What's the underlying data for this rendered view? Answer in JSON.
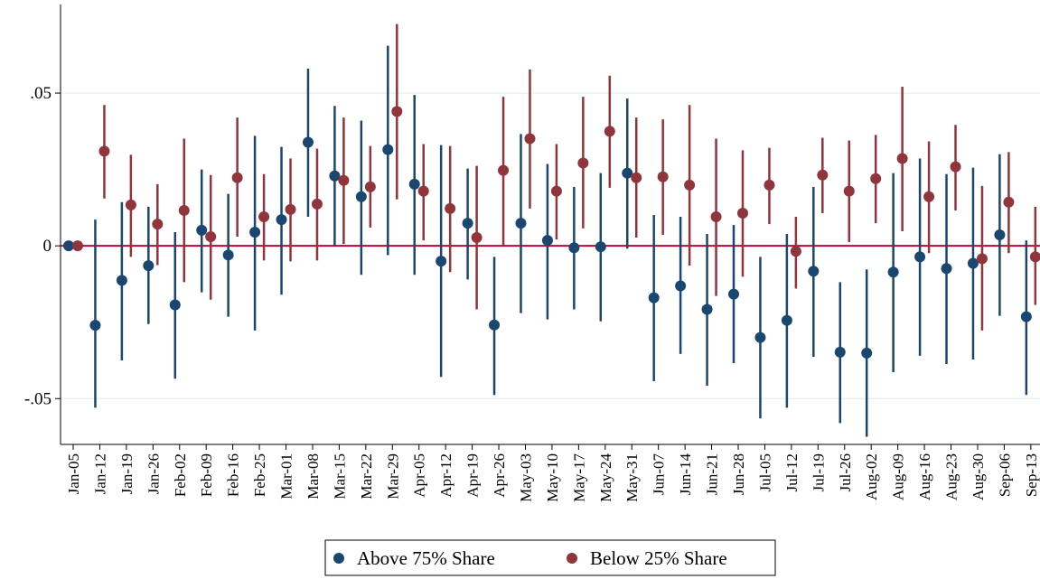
{
  "chart_data": {
    "type": "errorbar",
    "categories": [
      "Jan-05",
      "Jan-12",
      "Jan-19",
      "Jan-26",
      "Feb-02",
      "Feb-09",
      "Feb-16",
      "Feb-25",
      "Mar-01",
      "Mar-08",
      "Mar-15",
      "Mar-22",
      "Mar-29",
      "Apr-05",
      "Apr-12",
      "Apr-19",
      "Apr-26",
      "May-03",
      "May-10",
      "May-17",
      "May-24",
      "May-31",
      "Jun-07",
      "Jun-14",
      "Jun-21",
      "Jun-28",
      "Jul-05",
      "Jul-12",
      "Jul-19",
      "Jul-26",
      "Aug-02",
      "Aug-09",
      "Aug-16",
      "Aug-23",
      "Aug-30",
      "Sep-06",
      "Sep-13"
    ],
    "series": [
      {
        "name": "Above 75% Share",
        "color": "#1a476f",
        "values": [
          0,
          -0.026,
          -0.0113,
          -0.0065,
          -0.0193,
          0.0051,
          -0.003,
          0.0045,
          0.0086,
          0.0339,
          0.0229,
          0.0161,
          0.0315,
          0.0202,
          -0.005,
          0.0074,
          -0.0259,
          0.0074,
          0.0018,
          -0.0006,
          -0.0003,
          0.0238,
          -0.017,
          -0.0131,
          -0.0208,
          -0.0158,
          -0.03,
          -0.0244,
          -0.0083,
          -0.0348,
          -0.0351,
          -0.0086,
          -0.0036,
          -0.0074,
          -0.0057,
          0.0036,
          -0.0232
        ],
        "lower": [
          0,
          -0.053,
          -0.0375,
          -0.0256,
          -0.0435,
          -0.0152,
          -0.0232,
          -0.0277,
          -0.016,
          0.0095,
          0,
          -0.0095,
          -0.003,
          -0.0095,
          -0.0429,
          -0.011,
          -0.0488,
          -0.022,
          -0.0241,
          -0.0208,
          -0.0247,
          -0.0009,
          -0.0443,
          -0.0354,
          -0.0458,
          -0.0384,
          -0.0565,
          -0.053,
          -0.0363,
          -0.058,
          -0.0625,
          -0.0414,
          -0.036,
          -0.0387,
          -0.0372,
          -0.0229,
          -0.0488
        ],
        "upper": [
          0,
          0.0086,
          0.0143,
          0.0128,
          0.0045,
          0.025,
          0.017,
          0.036,
          0.0324,
          0.058,
          0.0458,
          0.041,
          0.0655,
          0.0494,
          0.033,
          0.0253,
          -0.0036,
          0.0366,
          0.0268,
          0.0193,
          0.0238,
          0.0482,
          0.0101,
          0.0095,
          0.0039,
          0.0068,
          -0.0036,
          0.0039,
          0.0193,
          -0.0119,
          -0.0077,
          0.0238,
          0.0286,
          0.0235,
          0.0256,
          0.03,
          0.0018
        ]
      },
      {
        "name": "Below 25% Share",
        "color": "#90353b",
        "values": [
          0,
          0.031,
          0.0134,
          0.0071,
          0.0116,
          0.003,
          0.0223,
          0.0095,
          0.0119,
          0.0137,
          0.0214,
          0.0193,
          0.044,
          0.0179,
          0.0122,
          0.0027,
          0.0247,
          0.0351,
          0.0179,
          0.0271,
          0.0375,
          0.0223,
          0.0226,
          0.0199,
          0.0095,
          0.0107,
          0.0199,
          -0.0018,
          0.0232,
          0.0179,
          0.022,
          0.0286,
          0.0161,
          0.0259,
          -0.0042,
          0.0143,
          -0.0036
        ],
        "lower": [
          0,
          0.0155,
          -0.0036,
          -0.0063,
          -0.0119,
          -0.0176,
          0.003,
          -0.0048,
          -0.0051,
          -0.0048,
          0.0006,
          0.006,
          0.0152,
          0.0018,
          -0.0086,
          -0.0208,
          0,
          0.0122,
          0.0021,
          0.0057,
          0.019,
          0.0027,
          0.0036,
          -0.0065,
          -0.0164,
          -0.0101,
          0.0071,
          -0.014,
          0.0107,
          0.0012,
          0.0074,
          0.0048,
          -0.0024,
          0.0116,
          -0.0277,
          -0.0024,
          -0.0193
        ],
        "upper": [
          0,
          0.0461,
          0.0298,
          0.0202,
          0.0351,
          0.0232,
          0.042,
          0.0235,
          0.0286,
          0.0318,
          0.042,
          0.0327,
          0.0726,
          0.0333,
          0.0327,
          0.0262,
          0.0488,
          0.0577,
          0.0333,
          0.0488,
          0.0557,
          0.042,
          0.0414,
          0.0461,
          0.0351,
          0.0313,
          0.0321,
          0.0095,
          0.0354,
          0.0345,
          0.0363,
          0.0521,
          0.0342,
          0.0396,
          0.0196,
          0.0307,
          0.0128
        ]
      }
    ],
    "ylim": [
      -0.065,
      0.079
    ],
    "yticks": [
      {
        "value": -0.05,
        "label": "-.05"
      },
      0,
      {
        "value": 0.05,
        "label": ".05"
      }
    ],
    "grid": true,
    "reference_line": {
      "value": 0,
      "color": "#c10534"
    },
    "legend": "bottom"
  }
}
